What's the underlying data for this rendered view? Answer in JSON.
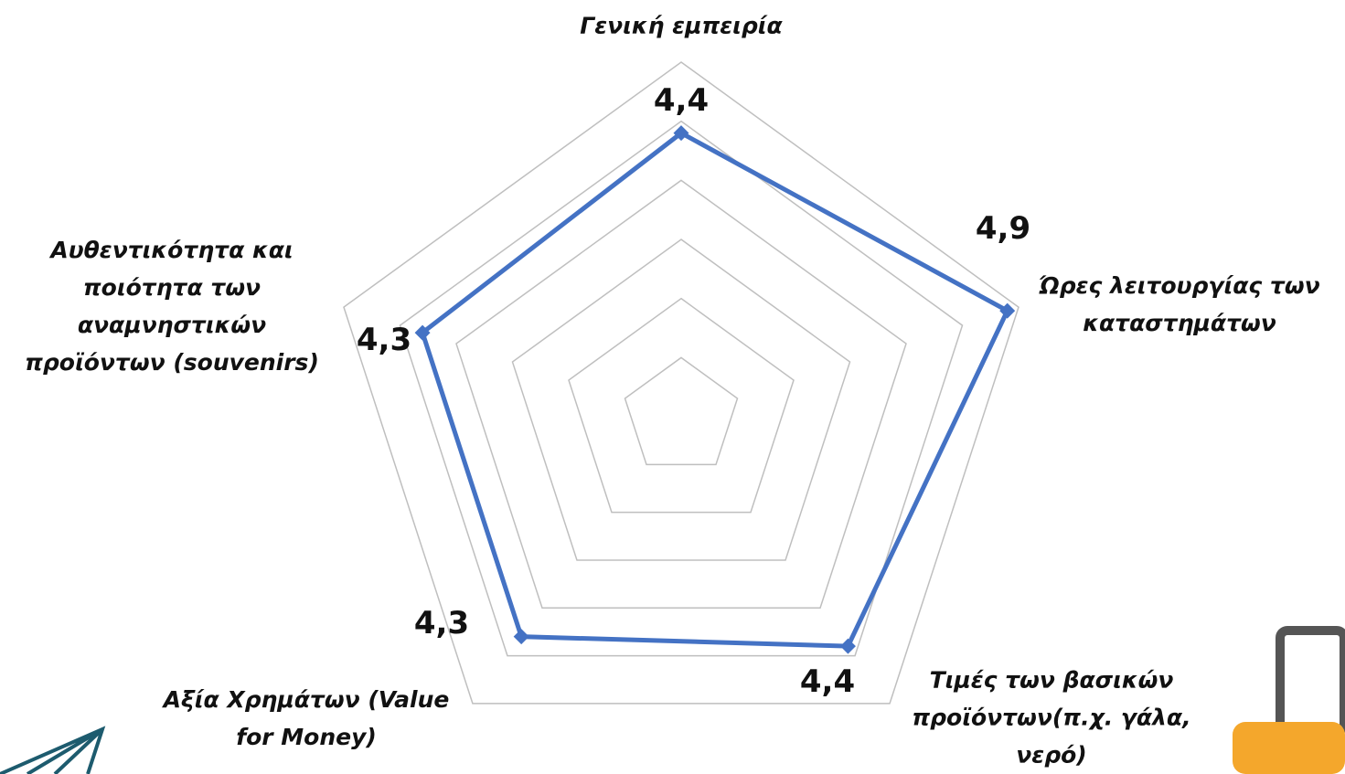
{
  "chart_data": {
    "type": "radar",
    "categories": [
      "Γενική εμπειρία",
      "Ώρες λειτουργίας των καταστημάτων",
      "Τιμές των βασικών προϊόντων(π.χ. γάλα, νερό)",
      "Αξία Χρημάτων (Value for Money)",
      "Αυθεντικότητα και ποιότητα των αναμνηστικών προϊόντων (souvenirs)"
    ],
    "values": [
      4.4,
      4.9,
      4.4,
      4.3,
      4.3
    ],
    "value_labels": [
      "4,4",
      "4,9",
      "4,4",
      "4,3",
      "4,3"
    ],
    "color": "#4472c4",
    "rlim": [
      2,
      5
    ],
    "rticks": [
      2.5,
      3,
      3.5,
      4,
      4.5,
      5
    ],
    "grid": true
  }
}
